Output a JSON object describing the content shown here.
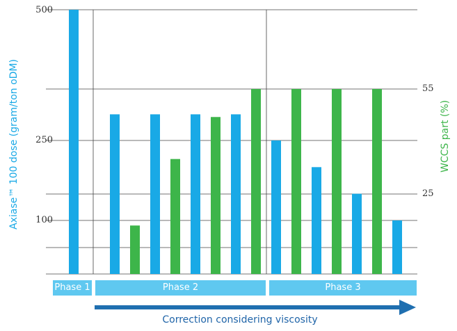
{
  "colors": {
    "blue": "#19a9e6",
    "green": "#3db54a",
    "phase": "#5fc8f0",
    "arrow": "#1f6fb0",
    "axis": "#333333"
  },
  "chart_data": {
    "type": "bar",
    "left_axis": {
      "label": "Axiase™ 100 dose (gram/ton oDM)",
      "ticks": [
        "500",
        "250",
        "100"
      ],
      "tick_values": [
        500,
        250,
        100
      ]
    },
    "right_axis": {
      "label": "WCCS part (%)",
      "ticks": [
        "55",
        "25"
      ],
      "tick_values": [
        55,
        25
      ]
    },
    "series": [
      {
        "name": "Axiase™ 100 dose",
        "color": "blue",
        "values": [
          500,
          300,
          300,
          300,
          300,
          250,
          200,
          150,
          100
        ]
      },
      {
        "name": "WCCS part",
        "color": "green",
        "values": [
          16,
          35,
          47,
          55,
          55,
          55,
          55
        ]
      }
    ],
    "bars": [
      {
        "series": 0,
        "value": 500
      },
      {
        "series": 0,
        "value": 300
      },
      {
        "series": 1,
        "value": 16
      },
      {
        "series": 0,
        "value": 300
      },
      {
        "series": 1,
        "value": 35
      },
      {
        "series": 0,
        "value": 300
      },
      {
        "series": 1,
        "value": 47
      },
      {
        "series": 0,
        "value": 300
      },
      {
        "series": 1,
        "value": 55
      },
      {
        "series": 0,
        "value": 250
      },
      {
        "series": 1,
        "value": 55
      },
      {
        "series": 0,
        "value": 200
      },
      {
        "series": 1,
        "value": 55
      },
      {
        "series": 0,
        "value": 150
      },
      {
        "series": 1,
        "value": 55
      },
      {
        "series": 0,
        "value": 100
      }
    ],
    "phases": [
      "Phase 1",
      "Phase 2",
      "Phase 3"
    ],
    "caption": "Correction considering viscosity",
    "grid": true
  }
}
